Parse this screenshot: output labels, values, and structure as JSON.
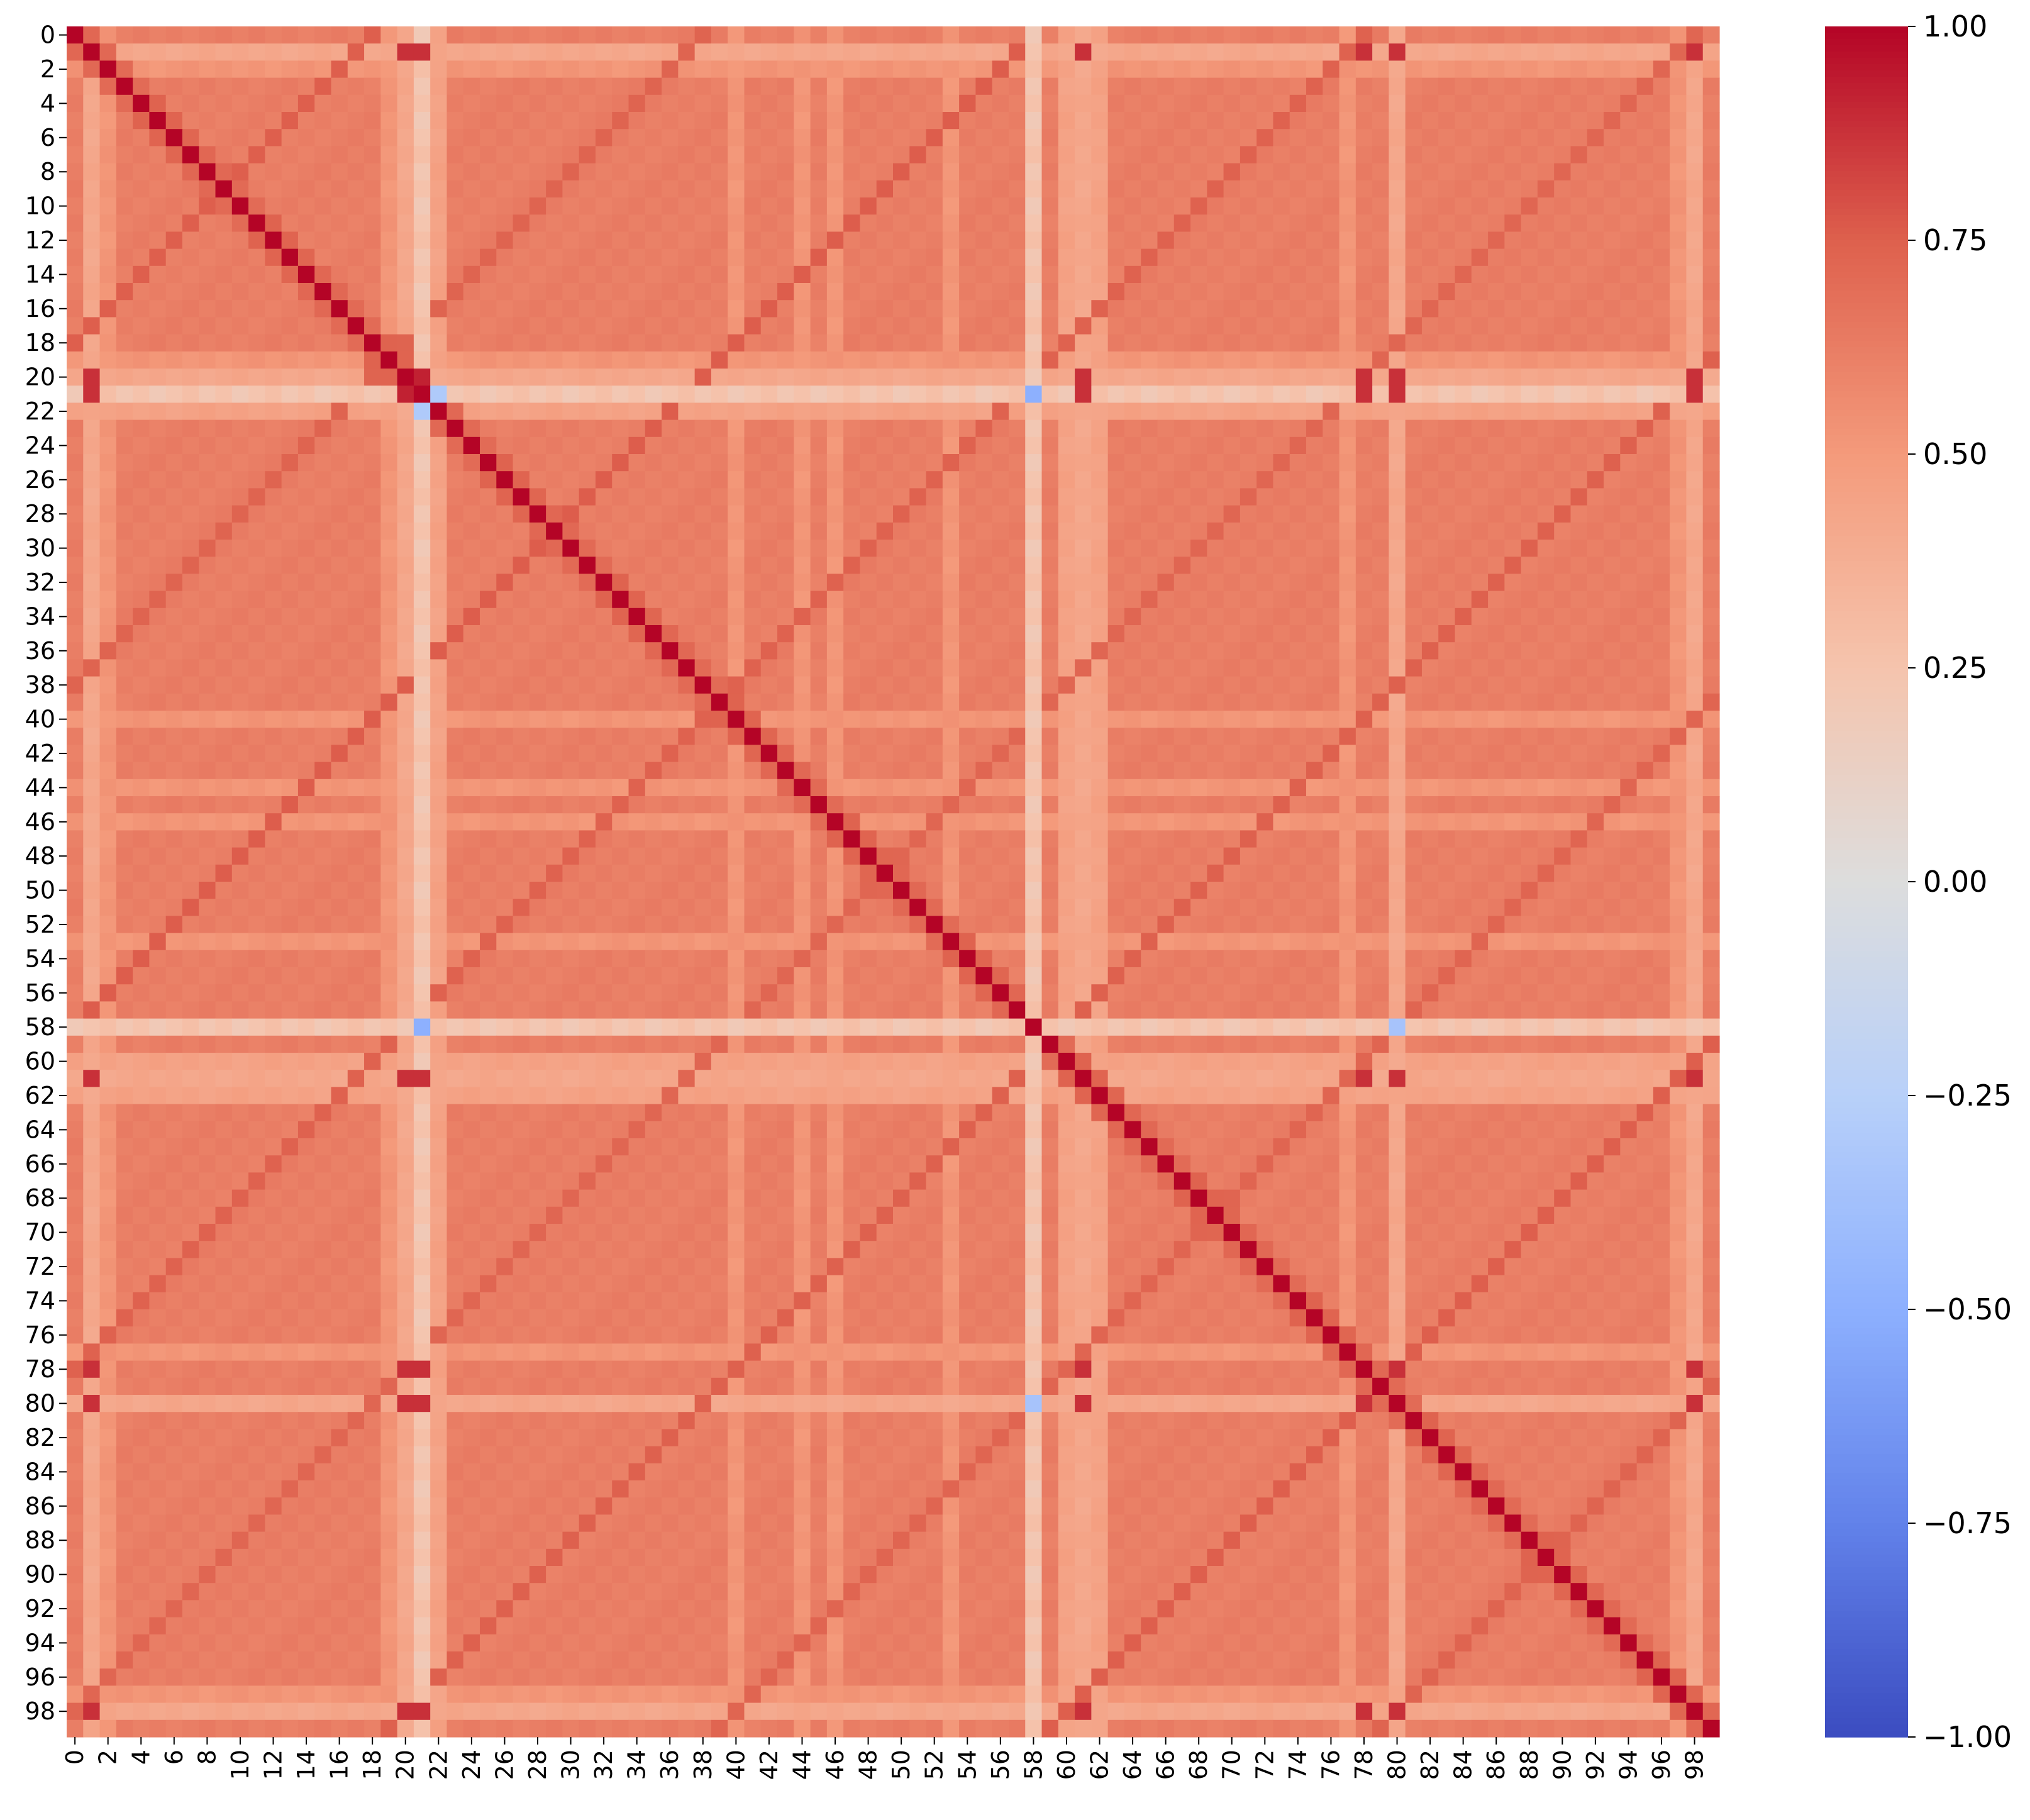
{
  "chart_data": {
    "type": "heatmap",
    "title": "",
    "xlabel": "",
    "ylabel": "",
    "n": 100,
    "tick_labels": [
      "0",
      "2",
      "4",
      "6",
      "8",
      "10",
      "12",
      "14",
      "16",
      "18",
      "20",
      "22",
      "24",
      "26",
      "28",
      "30",
      "32",
      "34",
      "36",
      "38",
      "40",
      "42",
      "44",
      "46",
      "48",
      "50",
      "52",
      "54",
      "56",
      "58",
      "60",
      "62",
      "64",
      "66",
      "68",
      "70",
      "72",
      "74",
      "76",
      "78",
      "80",
      "82",
      "84",
      "86",
      "88",
      "90",
      "92",
      "94",
      "96",
      "98"
    ],
    "tick_indices": [
      0,
      2,
      4,
      6,
      8,
      10,
      12,
      14,
      16,
      18,
      20,
      22,
      24,
      26,
      28,
      30,
      32,
      34,
      36,
      38,
      40,
      42,
      44,
      46,
      48,
      50,
      52,
      54,
      56,
      58,
      60,
      62,
      64,
      66,
      68,
      70,
      72,
      74,
      76,
      78,
      80,
      82,
      84,
      86,
      88,
      90,
      92,
      94,
      96,
      98
    ],
    "value_description": "Symmetric correlation matrix (indices 0-99). Diagonal = 1.00. Typical off-diagonal value about 0.6. Anti-diagonal-like bands (i+j = 18, 38, 58, 78, 98, 118, 138, 158, 178) near 0.75. Weakly correlated columns/rows 21 and 58 (about 0.25, with negative values versus each other and vs 22/80). Strongly correlated groups {1,20,21,61,78,80,98} (about 0.9).",
    "colormap": "coolwarm",
    "vmin": -1.0,
    "vmax": 1.0,
    "colorbar_ticks": [
      "1.00",
      "0.75",
      "0.50",
      "0.25",
      "0.00",
      "−0.25",
      "−0.50",
      "−0.75",
      "−1.00"
    ],
    "colorbar_values": [
      1.0,
      0.75,
      0.5,
      0.25,
      0.0,
      -0.25,
      -0.5,
      -0.75,
      -1.0
    ],
    "colors": {
      "high": "#b40426",
      "mid": "#dddddd",
      "low": "#3b4cc0"
    }
  }
}
